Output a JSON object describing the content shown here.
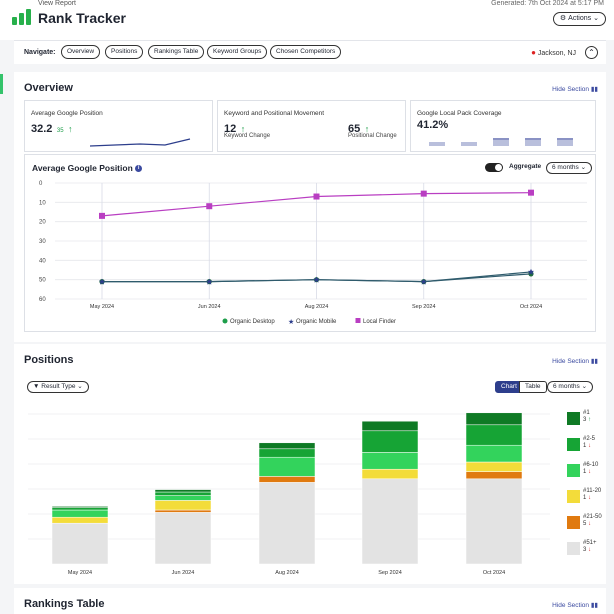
{
  "header": {
    "view_report": "View Report",
    "title": "Rank Tracker",
    "generated": "Generated: 7th Oct 2024 at 5:17 PM",
    "actions_label": "Actions"
  },
  "nav": {
    "label": "Navigate:",
    "items": [
      "Overview",
      "Positions",
      "Rankings Table",
      "Keyword Groups",
      "Chosen Competitors"
    ],
    "location": "Jackson, NJ"
  },
  "overview": {
    "title": "Overview",
    "hide_label": "Hide Section",
    "cards": {
      "avg_position": {
        "title": "Average Google Position",
        "value": "32.2",
        "delta": "35"
      },
      "movement": {
        "title": "Keyword and Positional Movement",
        "keyword_value": "12",
        "keyword_label": "Keyword Change",
        "positional_value": "65",
        "positional_label": "Positional Change"
      },
      "local_pack": {
        "title": "Google Local Pack Coverage",
        "value": "41.2%"
      }
    },
    "chart_title": "Average Google Position",
    "aggregate_label": "Aggregate",
    "range_label": "6 months"
  },
  "positions": {
    "title": "Positions",
    "hide_label": "Hide Section",
    "filter_label": "Result Type",
    "chart_tab": "Chart",
    "table_tab": "Table",
    "range_label": "6 months"
  },
  "rankings": {
    "title": "Rankings Table",
    "hide_label": "Hide Section"
  },
  "colors": {
    "organic_desktop": "#1e9e4a",
    "organic_mobile": "#2d3e8c",
    "local_finder": "#b93ec2",
    "navy_button": "#2d3e8c"
  },
  "chart_data": [
    {
      "type": "line",
      "title": "Average Google Position",
      "categories": [
        "May 2024",
        "Jun 2024",
        "Aug 2024",
        "Sep 2024",
        "Oct 2024"
      ],
      "ylim": [
        60,
        0
      ],
      "yticks": [
        0,
        10,
        20,
        30,
        40,
        50,
        60
      ],
      "series": [
        {
          "name": "Organic Desktop",
          "values": [
            51,
            51,
            50,
            51,
            47
          ]
        },
        {
          "name": "Organic Mobile",
          "values": [
            51,
            51,
            50,
            51,
            46
          ]
        },
        {
          "name": "Local Finder",
          "values": [
            17,
            12,
            7,
            5.5,
            5
          ]
        }
      ],
      "legend": "bottom"
    },
    {
      "type": "bar",
      "stacked": true,
      "categories": [
        "May 2024",
        "Jun 2024",
        "Aug 2024",
        "Sep 2024",
        "Oct 2024"
      ],
      "ylim": [
        0,
        130
      ],
      "series": [
        {
          "name": "#51+",
          "values": [
            34,
            43,
            68,
            71,
            71
          ]
        },
        {
          "name": "#21-50",
          "values": [
            0,
            2,
            5,
            0,
            6
          ]
        },
        {
          "name": "#11-20",
          "values": [
            5,
            8,
            0,
            8,
            8
          ]
        },
        {
          "name": "#6-10",
          "values": [
            6,
            4,
            16,
            14,
            14
          ]
        },
        {
          "name": "#2-5",
          "values": [
            2,
            3,
            7,
            18,
            17
          ]
        },
        {
          "name": "#1",
          "values": [
            1,
            2,
            5,
            8,
            10
          ]
        }
      ],
      "legend_changes": [
        {
          "value": "3",
          "direction": "up"
        },
        {
          "value": "1",
          "direction": "down"
        },
        {
          "value": "1",
          "direction": "down"
        },
        {
          "value": "1",
          "direction": "down"
        },
        {
          "value": "5",
          "direction": "down"
        },
        {
          "value": "3",
          "direction": "down"
        }
      ],
      "legend": "right"
    }
  ]
}
